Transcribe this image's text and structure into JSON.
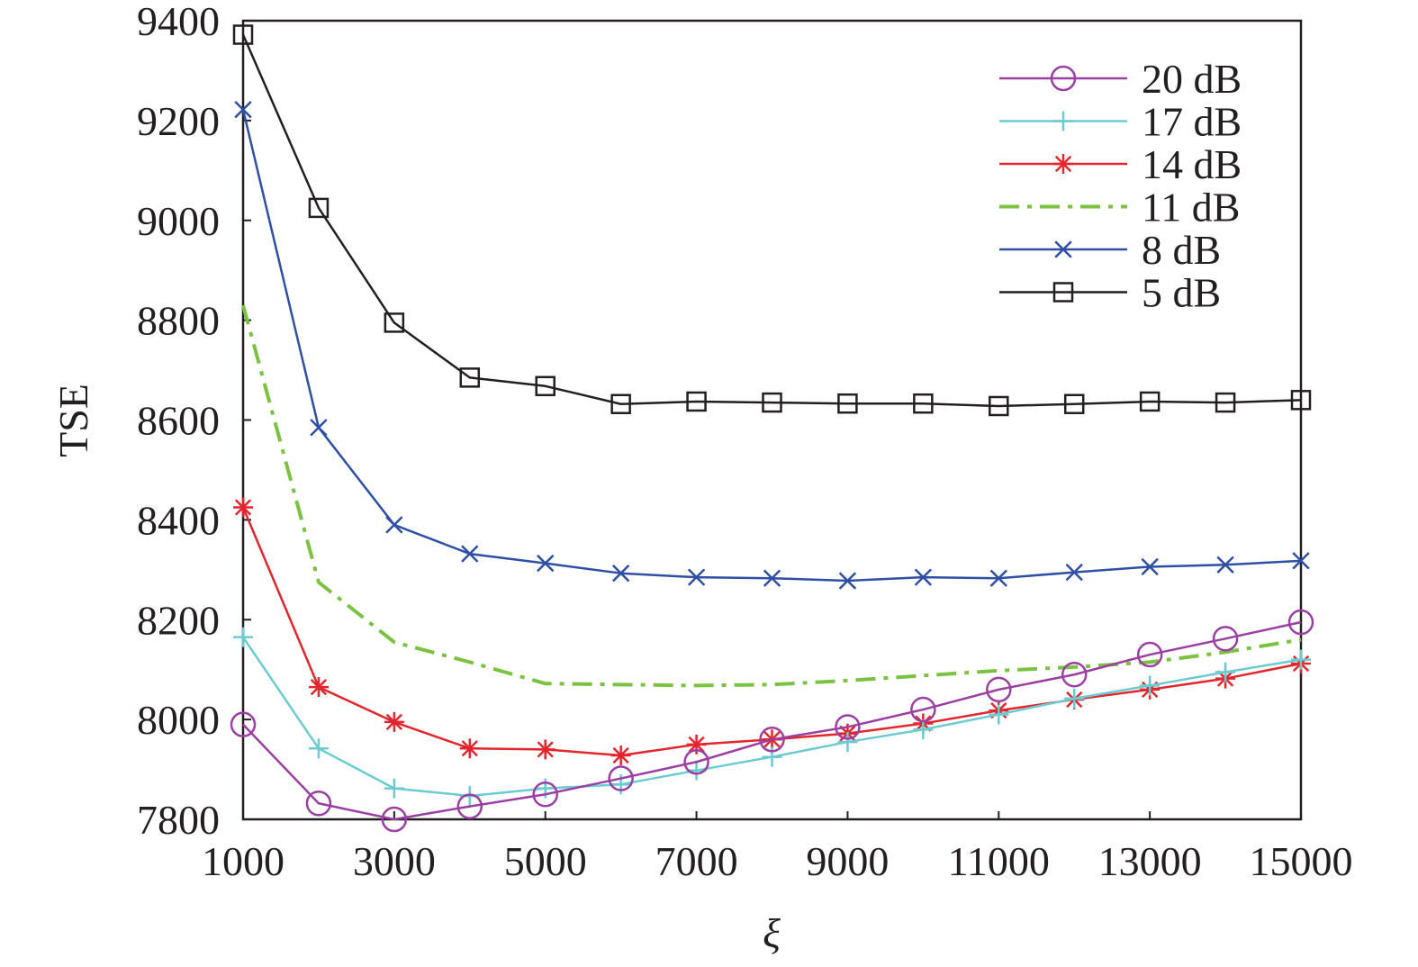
{
  "chart_data": {
    "type": "line",
    "title": "",
    "xlabel": "ξ",
    "ylabel": "TSE",
    "xlim": [
      1000,
      15000
    ],
    "ylim": [
      7800,
      9400
    ],
    "x_ticks": [
      1000,
      3000,
      5000,
      7000,
      9000,
      11000,
      13000,
      15000
    ],
    "y_ticks": [
      7800,
      8000,
      8200,
      8400,
      8600,
      8800,
      9000,
      9200,
      9400
    ],
    "grid": false,
    "legend_position": "top-right",
    "x": [
      1000,
      2000,
      3000,
      4000,
      5000,
      6000,
      7000,
      8000,
      9000,
      10000,
      11000,
      12000,
      13000,
      14000,
      15000
    ],
    "series": [
      {
        "name": "20 dB",
        "color": "#9b3fa3",
        "marker": "circle",
        "dash": "solid",
        "values": [
          7990,
          7832,
          7800,
          7826,
          7850,
          7882,
          7915,
          7960,
          7985,
          8020,
          8060,
          8090,
          8130,
          8162,
          8195
        ]
      },
      {
        "name": "17 dB",
        "color": "#6ccbd0",
        "marker": "plus",
        "dash": "solid",
        "values": [
          8165,
          7942,
          7862,
          7847,
          7862,
          7870,
          7898,
          7925,
          7955,
          7980,
          8010,
          8042,
          8068,
          8095,
          8120
        ]
      },
      {
        "name": "14 dB",
        "color": "#e3262d",
        "marker": "asterisk",
        "dash": "solid",
        "values": [
          8425,
          8065,
          7995,
          7942,
          7940,
          7928,
          7950,
          7960,
          7972,
          7992,
          8018,
          8040,
          8060,
          8082,
          8112
        ]
      },
      {
        "name": "11 dB",
        "color": "#7cc242",
        "marker": "none",
        "dash": "dashdot",
        "values": [
          8830,
          8275,
          8155,
          8115,
          8072,
          8070,
          8068,
          8070,
          8078,
          8088,
          8098,
          8105,
          8115,
          8135,
          8160
        ]
      },
      {
        "name": "8 dB",
        "color": "#2e4fa3",
        "marker": "x",
        "dash": "solid",
        "values": [
          9222,
          8585,
          8390,
          8332,
          8313,
          8293,
          8285,
          8283,
          8278,
          8285,
          8283,
          8295,
          8306,
          8310,
          8318
        ]
      },
      {
        "name": "5 dB",
        "color": "#231f20",
        "marker": "square",
        "dash": "solid",
        "values": [
          9372,
          9025,
          8795,
          8685,
          8668,
          8632,
          8637,
          8635,
          8633,
          8633,
          8628,
          8632,
          8637,
          8635,
          8640
        ]
      }
    ]
  }
}
